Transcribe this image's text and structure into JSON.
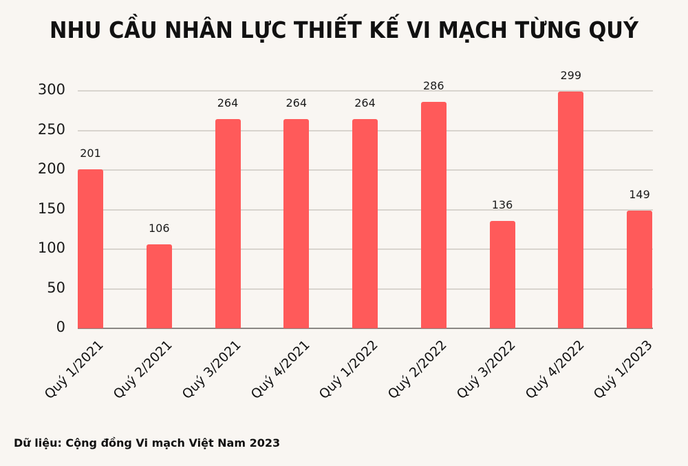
{
  "title": "NHU CẦU NHÂN LỰC THIẾT KẾ VI MẠCH TỪNG QUÝ",
  "source": "Dữ liệu: Cộng đồng Vi mạch Việt Nam 2023",
  "colors": {
    "bar": "#ff5a5a",
    "background": "#f9f6f2",
    "grid": "#d8d4ce"
  },
  "yticks": [
    "0",
    "50",
    "100",
    "150",
    "200",
    "250",
    "300"
  ],
  "chart_data": {
    "type": "bar",
    "title": "NHU CẦU NHÂN LỰC THIẾT KẾ VI MẠCH TỪNG QUÝ",
    "categories": [
      "Quý 1/2021",
      "Quý 2/2021",
      "Quý 3/2021",
      "Quý 4/2021",
      "Quý 1/2022",
      "Quý 2/2022",
      "Quý 3/2022",
      "Quý 4/2022",
      "Quý 1/2023"
    ],
    "values": [
      201,
      106,
      264,
      264,
      264,
      286,
      136,
      299,
      149
    ],
    "value_labels": [
      "201",
      "106",
      "264",
      "264",
      "264",
      "286",
      "136",
      "299",
      "149"
    ],
    "xlabel": "",
    "ylabel": "",
    "ylim": [
      0,
      300
    ],
    "yticks": [
      0,
      50,
      100,
      150,
      200,
      250,
      300
    ],
    "grid": true,
    "legend": null,
    "annotation": "Dữ liệu: Cộng đồng Vi mạch Việt Nam 2023"
  }
}
